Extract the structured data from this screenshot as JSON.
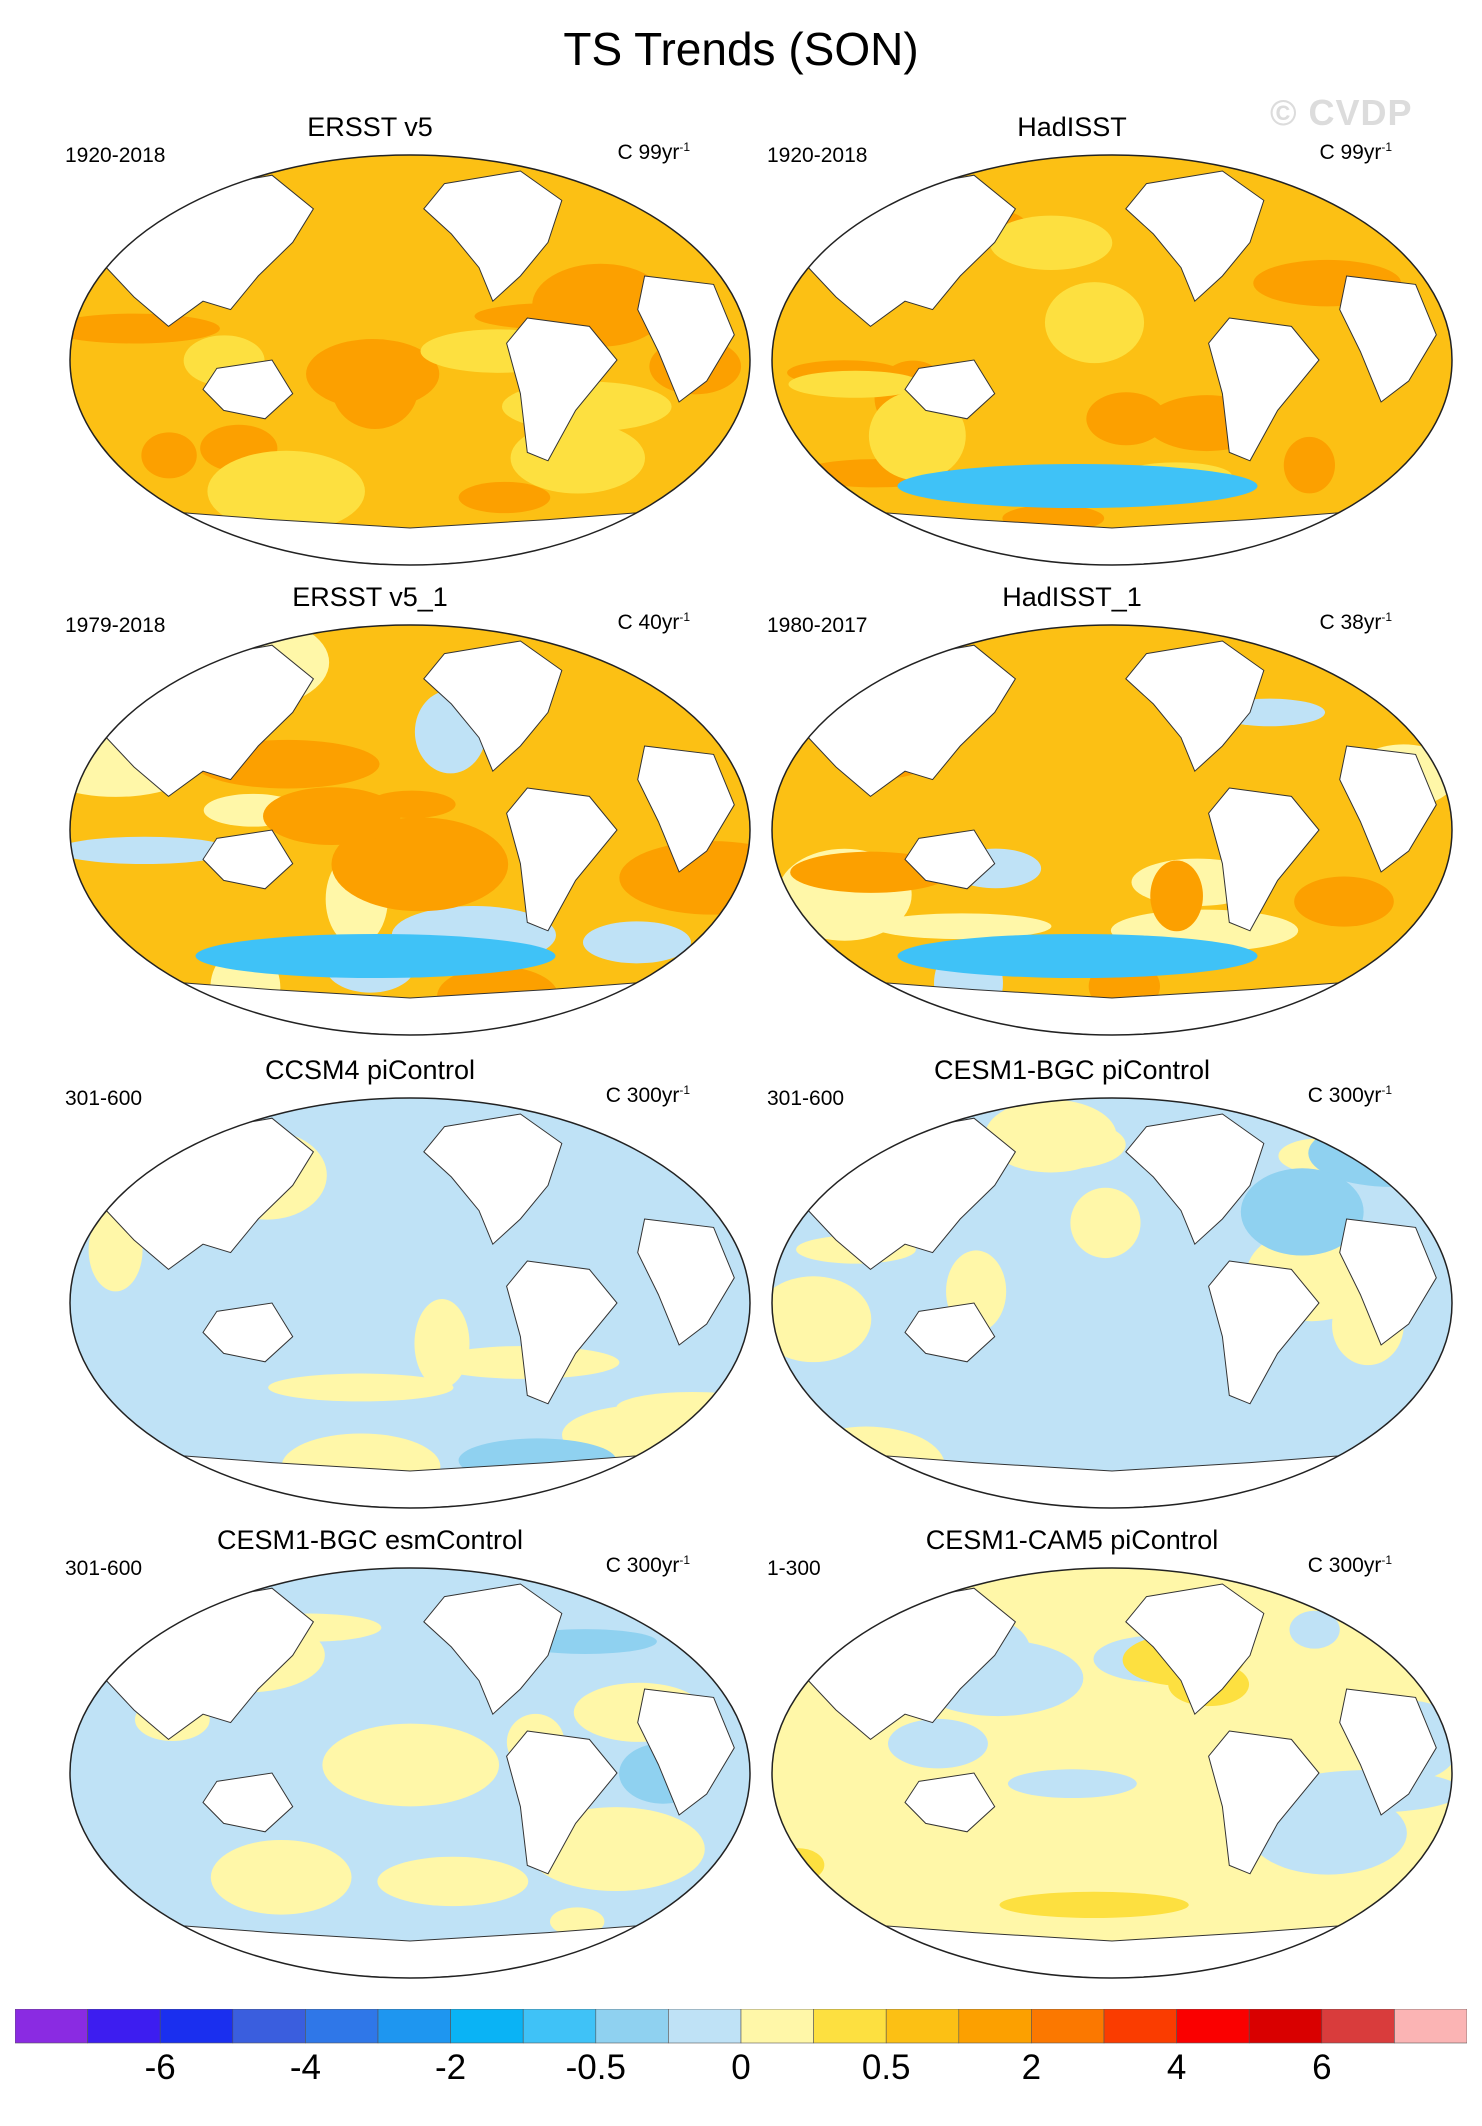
{
  "title": "TS Trends (SON)",
  "watermark": "© CVDP",
  "units_prefix": "C",
  "units_suffix": "yr",
  "units_exp": "-1",
  "panels": [
    {
      "title": "ERSST v5",
      "period": "1920-2018",
      "units_value": "99",
      "pattern": "warm",
      "cold_south": false
    },
    {
      "title": "HadISST",
      "period": "1920-2018",
      "units_value": "99",
      "pattern": "warm",
      "cold_south": true
    },
    {
      "title": "ERSST v5_1",
      "period": "1979-2018",
      "units_value": "40",
      "pattern": "recent",
      "cold_south": true
    },
    {
      "title": "HadISST_1",
      "period": "1980-2017",
      "units_value": "38",
      "pattern": "recent",
      "cold_south": true
    },
    {
      "title": "CCSM4 piControl",
      "period": "301-600",
      "units_value": "300",
      "pattern": "control",
      "cold_south": false
    },
    {
      "title": "CESM1-BGC piControl",
      "period": "301-600",
      "units_value": "300",
      "pattern": "control",
      "cold_south": false
    },
    {
      "title": "CESM1-BGC esmControl",
      "period": "301-600",
      "units_value": "300",
      "pattern": "control",
      "cold_south": false
    },
    {
      "title": "CESM1-CAM5 piControl",
      "period": "1-300",
      "units_value": "300",
      "pattern": "control2",
      "cold_south": false
    }
  ],
  "colorbar": {
    "colors": [
      "#8a2be2",
      "#3d1df0",
      "#1a2fef",
      "#3a5ede",
      "#2f77e8",
      "#1e96f0",
      "#0ab3f5",
      "#3fc2f7",
      "#8fd1f0",
      "#bfe2f6",
      "#fff7a8",
      "#fde040",
      "#fcc014",
      "#fca000",
      "#fb7800",
      "#fa3c00",
      "#fa0000",
      "#d90000",
      "#d93c3c",
      "#fbb4b4"
    ],
    "labels": [
      {
        "text": "-6",
        "index": 2
      },
      {
        "text": "-4",
        "index": 4
      },
      {
        "text": "-2",
        "index": 6
      },
      {
        "text": "-0.5",
        "index": 8
      },
      {
        "text": "0",
        "index": 10
      },
      {
        "text": "0.5",
        "index": 12
      },
      {
        "text": "2",
        "index": 14
      },
      {
        "text": "4",
        "index": 16
      },
      {
        "text": "6",
        "index": 18
      }
    ]
  }
}
